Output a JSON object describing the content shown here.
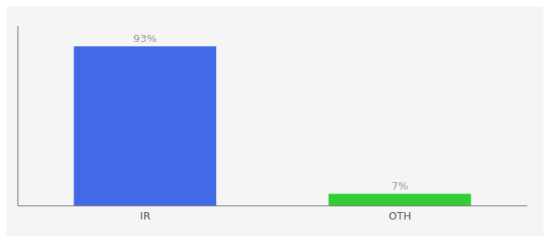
{
  "chart_data": {
    "type": "bar",
    "categories": [
      "IR",
      "OTH"
    ],
    "values": [
      93,
      7
    ],
    "value_labels": [
      "93%",
      "7%"
    ],
    "data_labels": true,
    "colors": [
      "#4169e8",
      "#33cc33"
    ],
    "ylim": [
      0,
      105
    ],
    "grid": false,
    "tick_labels": "x"
  }
}
